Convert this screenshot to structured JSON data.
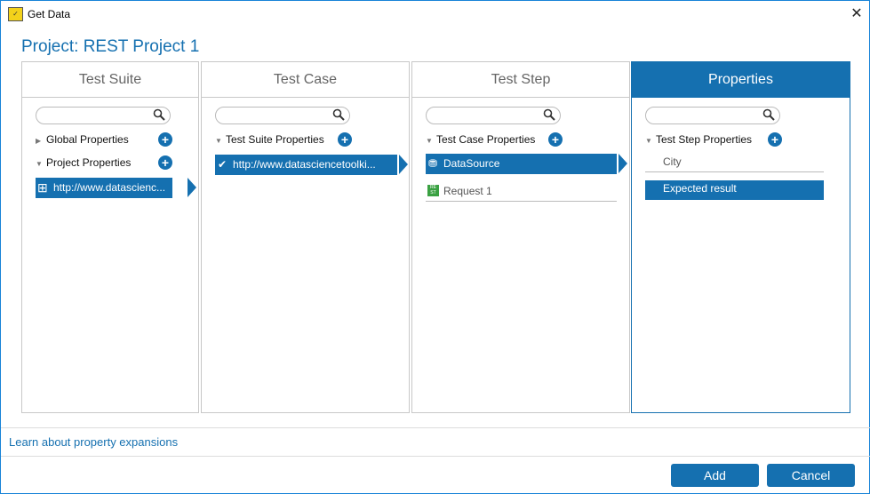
{
  "window": {
    "title": "Get Data",
    "close_icon": "close-icon"
  },
  "project_title": "Project: REST Project 1",
  "columns": [
    {
      "header": "Test Suite",
      "tree": [
        "Global Properties",
        "Project Properties"
      ],
      "selected": "http://www.datascienc..."
    },
    {
      "header": "Test Case",
      "tree": [
        "Test Suite Properties"
      ],
      "selected": "http://www.datasciencetoolki..."
    },
    {
      "header": "Test Step",
      "tree": [
        "Test Case Properties"
      ],
      "selected": "DataSource",
      "items": [
        "Request 1"
      ]
    },
    {
      "header": "Properties",
      "tree": [
        "Test Step Properties"
      ],
      "items": [
        "City"
      ],
      "selected": "Expected result"
    }
  ],
  "footer": {
    "link": "Learn about property expansions",
    "add": "Add",
    "cancel": "Cancel"
  },
  "colors": {
    "accent": "#1570b0"
  }
}
